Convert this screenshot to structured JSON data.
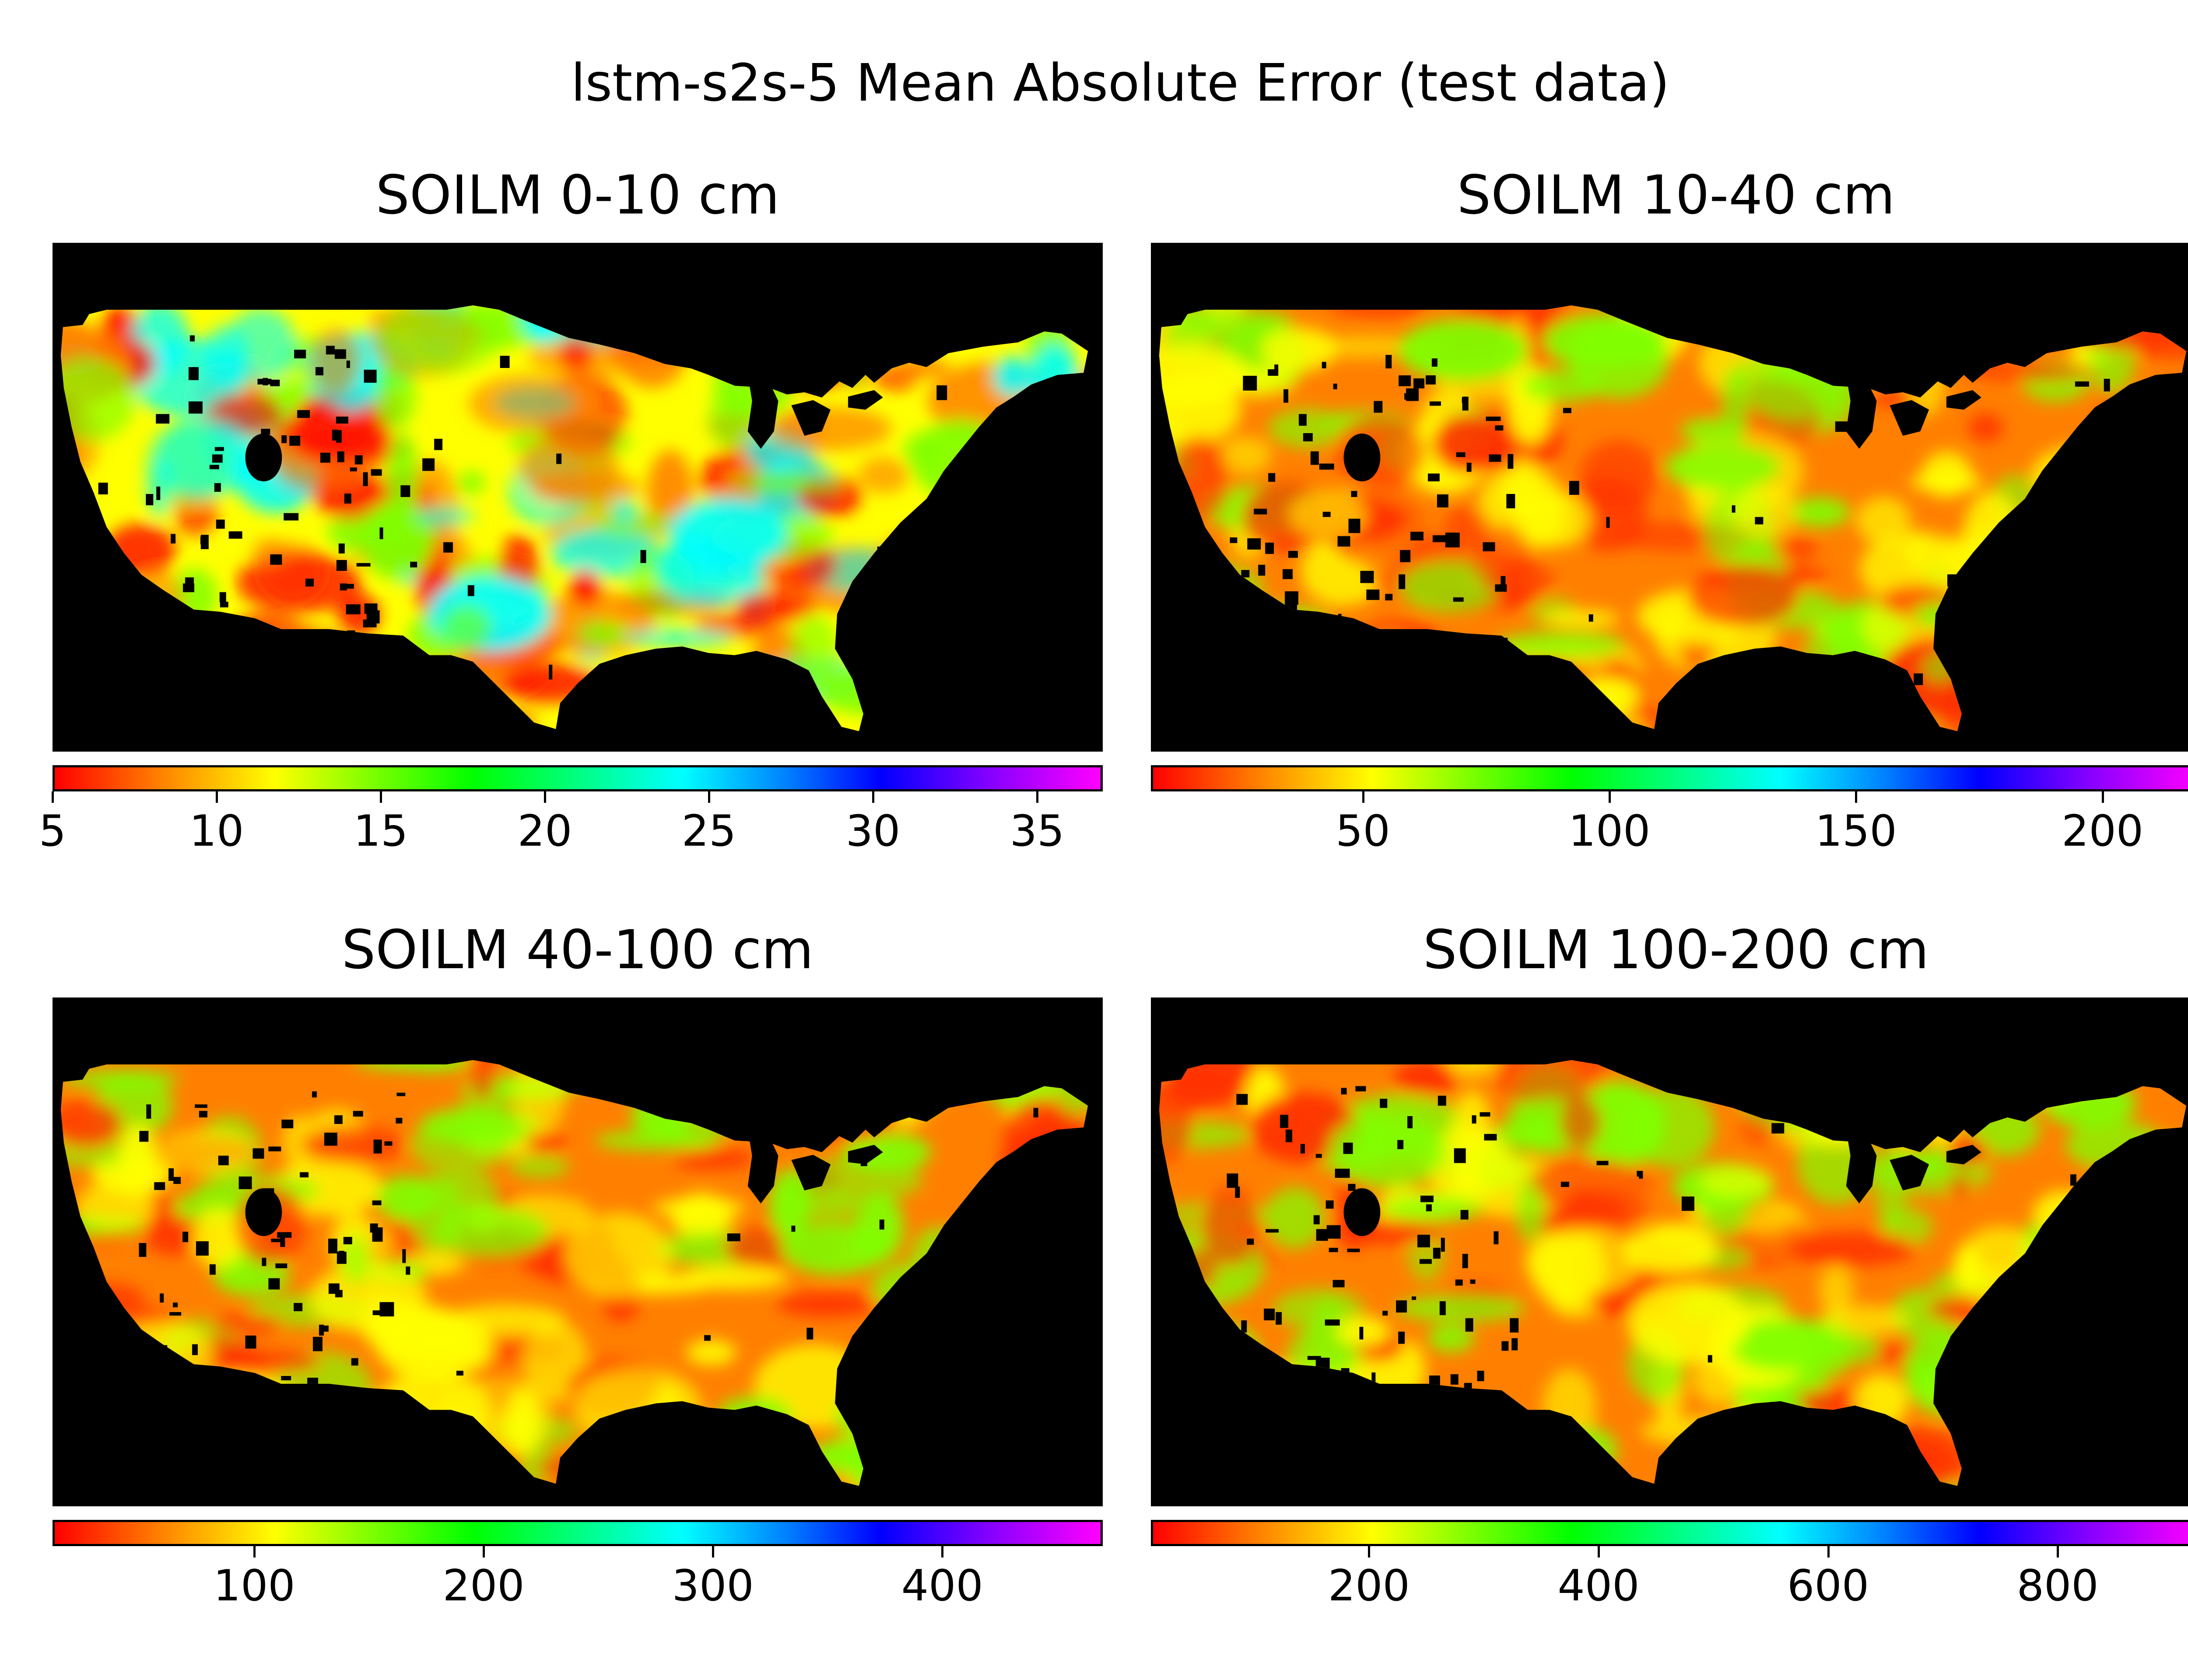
{
  "title": "lstm-s2s-5 Mean Absolute Error (test data)",
  "colormap": "gist_rainbow",
  "background_color": "#000000",
  "chart_data": [
    {
      "type": "heatmap",
      "title": "SOILM 0-10 cm",
      "colorbar": {
        "ticks": [
          "5",
          "10",
          "15",
          "20",
          "25",
          "30",
          "35"
        ],
        "range": [
          5,
          37
        ],
        "tick_values": [
          5,
          10,
          15,
          20,
          25,
          30,
          35
        ]
      },
      "dominant_colors": [
        "#ffff00",
        "#80ff00",
        "#ff8000",
        "#00ffff",
        "#ff0000"
      ]
    },
    {
      "type": "heatmap",
      "title": "SOILM 10-40 cm",
      "colorbar": {
        "ticks": [
          "50",
          "100",
          "150",
          "200"
        ],
        "range": [
          7,
          220
        ],
        "tick_values": [
          50,
          100,
          150,
          200
        ]
      },
      "dominant_colors": [
        "#ff8000",
        "#ffff00",
        "#ff3000",
        "#80ff00"
      ]
    },
    {
      "type": "heatmap",
      "title": "SOILM 40-100 cm",
      "colorbar": {
        "ticks": [
          "100",
          "200",
          "300",
          "400"
        ],
        "range": [
          12,
          470
        ],
        "tick_values": [
          100,
          200,
          300,
          400
        ]
      },
      "dominant_colors": [
        "#ff8000",
        "#ff3000",
        "#ffff00",
        "#80ff00"
      ]
    },
    {
      "type": "heatmap",
      "title": "SOILM 100-200 cm",
      "colorbar": {
        "ticks": [
          "200",
          "400",
          "600",
          "800"
        ],
        "range": [
          10,
          925
        ],
        "tick_values": [
          200,
          400,
          600,
          800
        ]
      },
      "dominant_colors": [
        "#ff8000",
        "#ff3000",
        "#ffff00",
        "#80ff00"
      ]
    }
  ]
}
